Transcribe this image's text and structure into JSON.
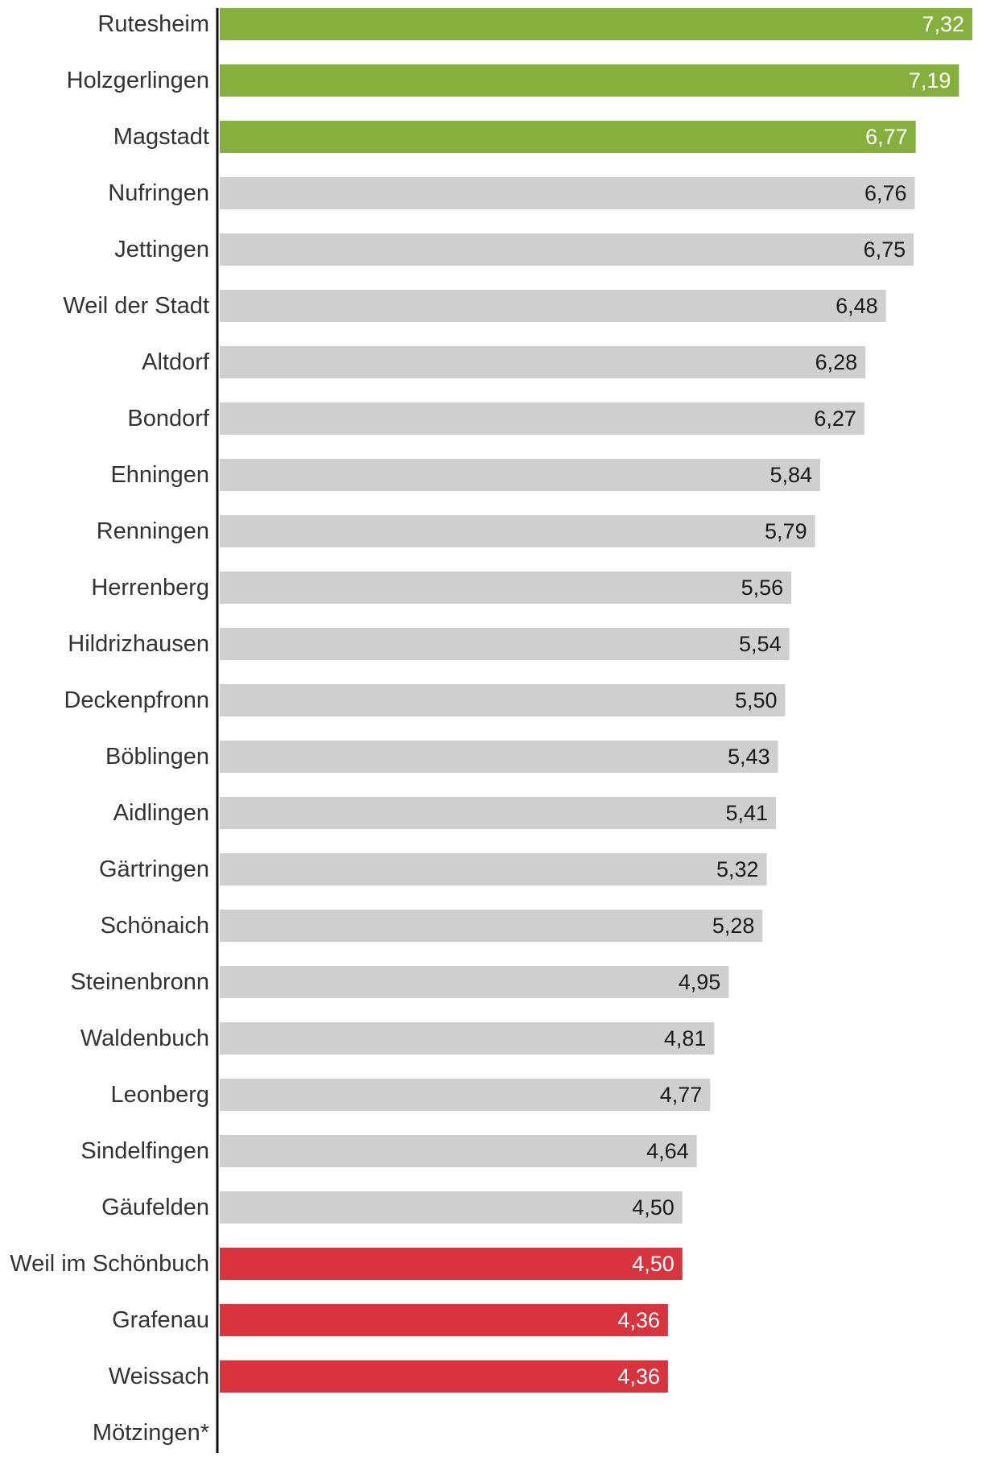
{
  "chart_data": {
    "type": "bar",
    "orientation": "horizontal",
    "title": "",
    "xlabel": "",
    "ylabel": "",
    "xlim": [
      0,
      7.32
    ],
    "grid": false,
    "categories": [
      "Rutesheim",
      "Holzgerlingen",
      "Magstadt",
      "Nufringen",
      "Jettingen",
      "Weil der Stadt",
      "Altdorf",
      "Bondorf",
      "Ehningen",
      "Renningen",
      "Herrenberg",
      "Hildrizhausen",
      "Deckenpfronn",
      "Böblingen",
      "Aidlingen",
      "Gärtringen",
      "Schönaich",
      "Steinenbronn",
      "Waldenbuch",
      "Leonberg",
      "Sindelfingen",
      "Gäufelden",
      "Weil im Schönbuch",
      "Grafenau",
      "Weissach",
      "Mötzingen*"
    ],
    "values": [
      7.32,
      7.19,
      6.77,
      6.76,
      6.75,
      6.48,
      6.28,
      6.27,
      5.84,
      5.79,
      5.56,
      5.54,
      5.5,
      5.43,
      5.41,
      5.32,
      5.28,
      4.95,
      4.81,
      4.77,
      4.64,
      4.5,
      4.5,
      4.36,
      4.36,
      null
    ],
    "value_labels": [
      "7,32",
      "7,19",
      "6,77",
      "6,76",
      "6,75",
      "6,48",
      "6,28",
      "6,27",
      "5,84",
      "5,79",
      "5,56",
      "5,54",
      "5,50",
      "5,43",
      "5,41",
      "5,32",
      "5,28",
      "4,95",
      "4,81",
      "4,77",
      "4,64",
      "4,50",
      "4,50",
      "4,36",
      "4,36",
      ""
    ],
    "highlight": [
      "top",
      "top",
      "top",
      "normal",
      "normal",
      "normal",
      "normal",
      "normal",
      "normal",
      "normal",
      "normal",
      "normal",
      "normal",
      "normal",
      "normal",
      "normal",
      "normal",
      "normal",
      "normal",
      "normal",
      "normal",
      "normal",
      "bottom",
      "bottom",
      "bottom",
      "normal"
    ]
  },
  "colors": {
    "top": "#86b03e",
    "normal": "#cfcfcf",
    "bottom": "#d9343d",
    "axis": "#111111",
    "label_dark": "#1a1a1a",
    "label_light": "#ffffff"
  }
}
